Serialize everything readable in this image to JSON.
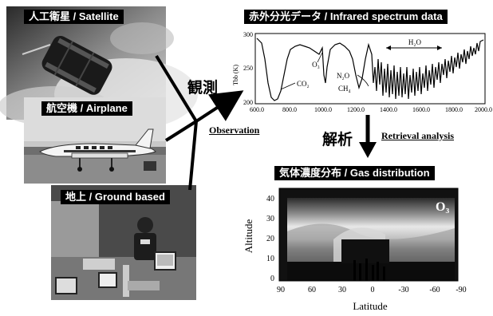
{
  "sources": {
    "satellite": "人工衛星 / Satellite",
    "airplane": "航空機 / Airplane",
    "ground": "地上 / Ground based"
  },
  "observation": {
    "jp": "観測",
    "en": "Observation"
  },
  "retrieval": {
    "jp": "解析",
    "en": "Retrieval analysis"
  },
  "spectrum": {
    "title": "赤外分光データ / Infrared spectrum data",
    "ylabel": "Tbb (K)",
    "yticks": [
      "300",
      "250",
      "200"
    ],
    "xticks": [
      "600.0",
      "800.0",
      "1000.0",
      "1200.0",
      "1400.0",
      "1600.0",
      "1800.0",
      "2000.0"
    ],
    "annotations": {
      "h2o": "H₂O",
      "o3": "O₃",
      "co2": "CO₂",
      "n2o": "N₂O",
      "ch4": "CH₄"
    }
  },
  "gas": {
    "title": "気体濃度分布 / Gas distribution",
    "species": "O₃",
    "ylabel": "Altitude",
    "xlabel": "Latitude",
    "yticks": [
      "40",
      "30",
      "20",
      "10",
      "0"
    ],
    "xticks": [
      "90",
      "60",
      "30",
      "0",
      "-30",
      "-60",
      "-90"
    ]
  },
  "colors": {
    "label_bg": "#000000",
    "label_text": "#ffffff"
  }
}
